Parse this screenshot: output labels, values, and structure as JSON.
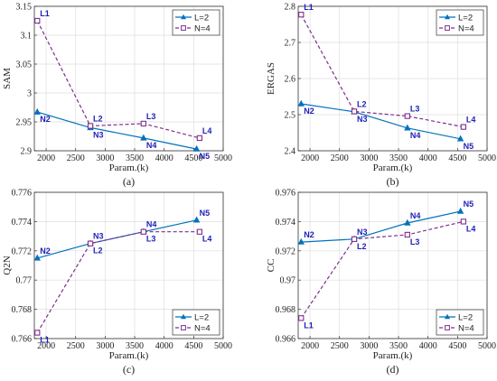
{
  "legend_labels": [
    "L=2",
    "N=4"
  ],
  "colors": {
    "L2": "#0072BD",
    "N4": "#7E2F8E",
    "label": "#1f1fb8"
  },
  "chart_data": [
    {
      "type": "line",
      "panel": "(a)",
      "xlabel": "Param.(k)",
      "ylabel": "SAM",
      "xlim": [
        1800,
        5000
      ],
      "ylim": [
        2.9,
        3.15
      ],
      "xticks": [
        2000,
        2500,
        3000,
        3500,
        4000,
        4500,
        5000
      ],
      "yticks": [
        2.9,
        2.95,
        3,
        3.05,
        3.1,
        3.15
      ],
      "ytick_labels": [
        "2.9",
        "2.95",
        "3",
        "3.05",
        "3.1",
        "3.15"
      ],
      "grid": true,
      "legend": "top-right",
      "series": [
        {
          "name": "L=2",
          "marker": "triangle",
          "style": "solid",
          "x": [
            1850,
            2750,
            3650,
            4550
          ],
          "y": [
            2.967,
            2.94,
            2.922,
            2.903
          ],
          "labels": [
            "N2",
            "N3",
            "N4",
            "N5"
          ],
          "label_pos": [
            "below",
            "below",
            "below",
            "below"
          ]
        },
        {
          "name": "N=4",
          "marker": "square",
          "style": "dashed",
          "x": [
            1850,
            2750,
            3650,
            4600
          ],
          "y": [
            3.125,
            2.943,
            2.947,
            2.922
          ],
          "labels": [
            "L1",
            "L2",
            "L3",
            "L4"
          ],
          "label_pos": [
            "above",
            "above",
            "above",
            "above"
          ]
        }
      ]
    },
    {
      "type": "line",
      "panel": "(b)",
      "xlabel": "Param.(k)",
      "ylabel": "ERGAS",
      "xlim": [
        1800,
        5000
      ],
      "ylim": [
        2.4,
        2.8
      ],
      "xticks": [
        2000,
        2500,
        3000,
        3500,
        4000,
        4500,
        5000
      ],
      "yticks": [
        2.4,
        2.5,
        2.6,
        2.7,
        2.8
      ],
      "ytick_labels": [
        "2.4",
        "2.5",
        "2.6",
        "2.7",
        "2.8"
      ],
      "grid": true,
      "legend": "top-right",
      "series": [
        {
          "name": "L=2",
          "marker": "triangle",
          "style": "solid",
          "x": [
            1850,
            2750,
            3650,
            4550
          ],
          "y": [
            2.53,
            2.508,
            2.463,
            2.433
          ],
          "labels": [
            "N2",
            "N3",
            "N4",
            "N5"
          ],
          "label_pos": [
            "below",
            "below",
            "below",
            "below"
          ]
        },
        {
          "name": "N=4",
          "marker": "square",
          "style": "dashed",
          "x": [
            1850,
            2750,
            3650,
            4600
          ],
          "y": [
            2.777,
            2.509,
            2.496,
            2.466
          ],
          "labels": [
            "L1",
            "L2",
            "L3",
            "L4"
          ],
          "label_pos": [
            "above",
            "above",
            "above",
            "above"
          ]
        }
      ]
    },
    {
      "type": "line",
      "panel": "(c)",
      "xlabel": "Param.(k)",
      "ylabel": "Q2N",
      "xlim": [
        1800,
        5000
      ],
      "ylim": [
        0.766,
        0.776
      ],
      "xticks": [
        2000,
        2500,
        3000,
        3500,
        4000,
        4500,
        5000
      ],
      "yticks": [
        0.766,
        0.768,
        0.77,
        0.772,
        0.774,
        0.776
      ],
      "ytick_labels": [
        "0.766",
        "0.768",
        "0.77",
        "0.772",
        "0.774",
        "0.776"
      ],
      "grid": true,
      "legend": "bottom-right",
      "series": [
        {
          "name": "L=2",
          "marker": "triangle",
          "style": "solid",
          "x": [
            1850,
            2750,
            3650,
            4550
          ],
          "y": [
            0.7715,
            0.7725,
            0.7733,
            0.7741
          ],
          "labels": [
            "N2",
            "N3",
            "N4",
            "N5"
          ],
          "label_pos": [
            "above",
            "above",
            "above",
            "above"
          ]
        },
        {
          "name": "N=4",
          "marker": "square",
          "style": "dashed",
          "x": [
            1850,
            2750,
            3650,
            4600
          ],
          "y": [
            0.7664,
            0.7725,
            0.7733,
            0.7733
          ],
          "labels": [
            "L1",
            "L2",
            "L3",
            "L4"
          ],
          "label_pos": [
            "below",
            "below",
            "below",
            "below"
          ]
        }
      ]
    },
    {
      "type": "line",
      "panel": "(d)",
      "xlabel": "Param.(k)",
      "ylabel": "CC",
      "xlim": [
        1800,
        5000
      ],
      "ylim": [
        0.966,
        0.976
      ],
      "xticks": [
        2000,
        2500,
        3000,
        3500,
        4000,
        4500,
        5000
      ],
      "yticks": [
        0.966,
        0.968,
        0.97,
        0.972,
        0.974,
        0.976
      ],
      "ytick_labels": [
        "0.966",
        "0.968",
        "0.97",
        "0.972",
        "0.974",
        "0.976"
      ],
      "grid": true,
      "legend": "bottom-right",
      "series": [
        {
          "name": "L=2",
          "marker": "triangle",
          "style": "solid",
          "x": [
            1850,
            2750,
            3650,
            4550
          ],
          "y": [
            0.9726,
            0.9728,
            0.9739,
            0.9747
          ],
          "labels": [
            "N2",
            "N3",
            "N4",
            "N5"
          ],
          "label_pos": [
            "above",
            "above",
            "above",
            "above"
          ]
        },
        {
          "name": "N=4",
          "marker": "square",
          "style": "dashed",
          "x": [
            1850,
            2750,
            3650,
            4600
          ],
          "y": [
            0.9674,
            0.9728,
            0.9731,
            0.974
          ],
          "labels": [
            "L1",
            "L2",
            "L3",
            "L4"
          ],
          "label_pos": [
            "below",
            "below",
            "below",
            "below"
          ]
        }
      ]
    }
  ]
}
